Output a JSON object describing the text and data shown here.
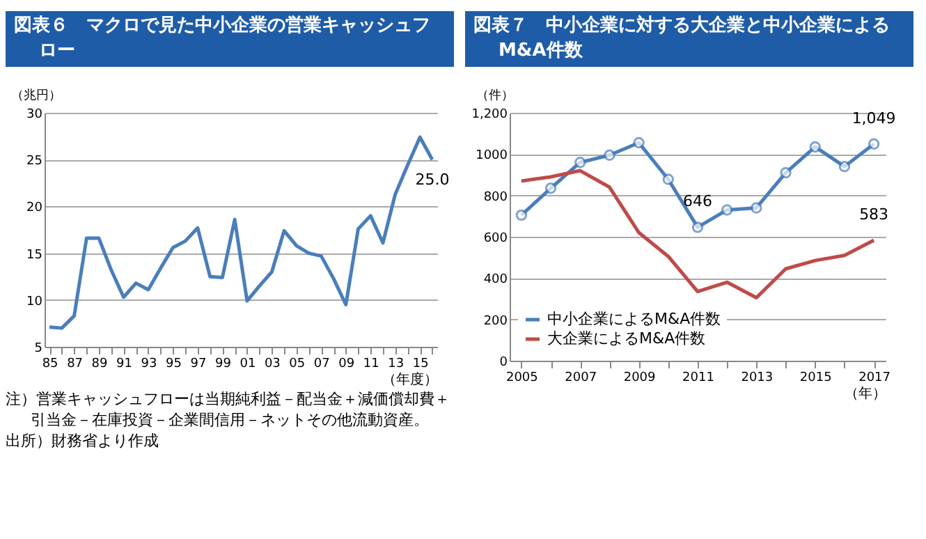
{
  "chart_data": [
    {
      "type": "line",
      "title": "図表６　マクロで見た中小企業の営業キャッシュフロー",
      "xlabel": "（年度）",
      "ylabel": "（兆円）",
      "categories": [
        "85",
        null,
        "87",
        null,
        "89",
        null,
        "91",
        null,
        "93",
        null,
        "95",
        null,
        "97",
        null,
        "99",
        null,
        "01",
        null,
        "03",
        null,
        "05",
        null,
        "07",
        null,
        "09",
        null,
        "11",
        null,
        "13",
        null,
        "15",
        null
      ],
      "series": [
        {
          "color": "#4a7ebb",
          "values": [
            7.1,
            7.0,
            8.3,
            16.6,
            16.6,
            13.2,
            10.3,
            11.8,
            11.1,
            13.4,
            15.6,
            16.3,
            17.7,
            12.5,
            12.4,
            18.6,
            9.9,
            11.5,
            13.0,
            17.4,
            15.8,
            15.0,
            14.7,
            12.3,
            9.5,
            17.6,
            19.0,
            16.1,
            21.3,
            24.4,
            27.4,
            25.0
          ],
          "value_labels": [
            null,
            null,
            null,
            null,
            null,
            null,
            null,
            null,
            null,
            null,
            null,
            null,
            null,
            null,
            null,
            null,
            null,
            null,
            null,
            null,
            null,
            null,
            null,
            null,
            null,
            null,
            null,
            null,
            null,
            null,
            null,
            "25.0"
          ]
        }
      ],
      "ylim": [
        5,
        30
      ],
      "yticks": [
        5,
        10,
        15,
        20,
        25,
        30
      ],
      "grid": "y",
      "annotations": [
        "注）営業キャッシュフローは当期純利益－配当金＋減価償却費＋引当金－在庫投資－企業間信用－ネットその他流動資産。",
        "出所）財務省より作成"
      ]
    },
    {
      "type": "line",
      "title": "図表７　中小企業に対する大企業と中小企業によるM&A件数",
      "xlabel": "（年）",
      "ylabel": "（件）",
      "categories": [
        "2005",
        null,
        "2007",
        null,
        "2009",
        null,
        "2011",
        null,
        "2013",
        null,
        "2015",
        null,
        "2017"
      ],
      "series": [
        {
          "name": "中小企業によるM&A件数",
          "color": "#4a7ebb",
          "marker": "circle",
          "values": [
            705,
            835,
            960,
            995,
            1055,
            878,
            646,
            730,
            740,
            910,
            1035,
            940,
            1049
          ],
          "value_labels": [
            null,
            null,
            null,
            null,
            null,
            null,
            "646",
            null,
            null,
            null,
            null,
            null,
            "1,049"
          ]
        },
        {
          "name": "大企業によるM&A件数",
          "color": "#be4b48",
          "values": [
            870,
            890,
            920,
            840,
            620,
            505,
            335,
            380,
            305,
            445,
            485,
            510,
            583
          ],
          "value_labels": [
            null,
            null,
            null,
            null,
            null,
            null,
            null,
            null,
            null,
            null,
            null,
            null,
            "583"
          ]
        }
      ],
      "ylim": [
        0,
        1200
      ],
      "yticks": [
        0,
        200,
        400,
        600,
        800,
        1000,
        {
          "value": 1200,
          "label": "1,200"
        }
      ],
      "grid": "y",
      "legend": "bottom left"
    }
  ]
}
